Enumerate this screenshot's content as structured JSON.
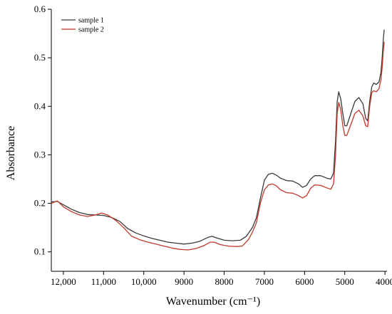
{
  "chart_data": {
    "type": "line",
    "title": "",
    "xlabel": "Wavenumber (cm⁻¹)",
    "ylabel": "Absorbance",
    "xlim": [
      12300,
      3950
    ],
    "ylim": [
      0.06,
      0.6
    ],
    "x_reversed": true,
    "x_ticks": [
      12000,
      11000,
      10000,
      9000,
      8000,
      7000,
      6000,
      5000,
      4000
    ],
    "x_tick_labels": [
      "12,000",
      "11,000",
      "10,000",
      "9000",
      "8000",
      "7000",
      "6000",
      "5000",
      "4000"
    ],
    "y_ticks": [
      0.1,
      0.2,
      0.3,
      0.4,
      0.5,
      0.6
    ],
    "y_tick_labels": [
      "0.1",
      "0.2",
      "0.3",
      "0.4",
      "0.5",
      "0.6"
    ],
    "grid": false,
    "legend_position": "top-left",
    "series": [
      {
        "name": "sample 1",
        "color": "#3a3a3a",
        "points": [
          [
            12300,
            0.203
          ],
          [
            12150,
            0.204
          ],
          [
            12000,
            0.197
          ],
          [
            11800,
            0.188
          ],
          [
            11600,
            0.181
          ],
          [
            11400,
            0.177
          ],
          [
            11200,
            0.176
          ],
          [
            11000,
            0.175
          ],
          [
            10800,
            0.171
          ],
          [
            10600,
            0.163
          ],
          [
            10400,
            0.148
          ],
          [
            10200,
            0.139
          ],
          [
            10000,
            0.133
          ],
          [
            9800,
            0.128
          ],
          [
            9600,
            0.124
          ],
          [
            9400,
            0.12
          ],
          [
            9200,
            0.118
          ],
          [
            9000,
            0.116
          ],
          [
            8800,
            0.118
          ],
          [
            8600,
            0.122
          ],
          [
            8400,
            0.13
          ],
          [
            8300,
            0.132
          ],
          [
            8200,
            0.129
          ],
          [
            8000,
            0.124
          ],
          [
            7800,
            0.123
          ],
          [
            7600,
            0.124
          ],
          [
            7450,
            0.132
          ],
          [
            7300,
            0.15
          ],
          [
            7200,
            0.17
          ],
          [
            7100,
            0.21
          ],
          [
            7000,
            0.248
          ],
          [
            6900,
            0.26
          ],
          [
            6800,
            0.262
          ],
          [
            6700,
            0.258
          ],
          [
            6600,
            0.252
          ],
          [
            6450,
            0.247
          ],
          [
            6300,
            0.246
          ],
          [
            6150,
            0.24
          ],
          [
            6050,
            0.233
          ],
          [
            5950,
            0.237
          ],
          [
            5850,
            0.25
          ],
          [
            5750,
            0.257
          ],
          [
            5600,
            0.257
          ],
          [
            5450,
            0.252
          ],
          [
            5350,
            0.25
          ],
          [
            5280,
            0.262
          ],
          [
            5230,
            0.33
          ],
          [
            5190,
            0.41
          ],
          [
            5150,
            0.43
          ],
          [
            5100,
            0.415
          ],
          [
            5050,
            0.385
          ],
          [
            5000,
            0.36
          ],
          [
            4950,
            0.36
          ],
          [
            4850,
            0.385
          ],
          [
            4750,
            0.41
          ],
          [
            4650,
            0.418
          ],
          [
            4550,
            0.405
          ],
          [
            4480,
            0.375
          ],
          [
            4430,
            0.37
          ],
          [
            4380,
            0.41
          ],
          [
            4330,
            0.44
          ],
          [
            4280,
            0.448
          ],
          [
            4220,
            0.445
          ],
          [
            4150,
            0.45
          ],
          [
            4100,
            0.47
          ],
          [
            4070,
            0.5
          ],
          [
            4040,
            0.54
          ],
          [
            4020,
            0.558
          ]
        ]
      },
      {
        "name": "sample 2",
        "color": "#c0392b",
        "points": [
          [
            12300,
            0.2
          ],
          [
            12150,
            0.205
          ],
          [
            12000,
            0.193
          ],
          [
            11800,
            0.183
          ],
          [
            11600,
            0.176
          ],
          [
            11400,
            0.173
          ],
          [
            11200,
            0.176
          ],
          [
            11050,
            0.18
          ],
          [
            10900,
            0.176
          ],
          [
            10700,
            0.165
          ],
          [
            10500,
            0.15
          ],
          [
            10300,
            0.132
          ],
          [
            10100,
            0.125
          ],
          [
            9900,
            0.12
          ],
          [
            9700,
            0.116
          ],
          [
            9500,
            0.112
          ],
          [
            9300,
            0.108
          ],
          [
            9100,
            0.105
          ],
          [
            8900,
            0.104
          ],
          [
            8700,
            0.107
          ],
          [
            8500,
            0.113
          ],
          [
            8350,
            0.12
          ],
          [
            8250,
            0.12
          ],
          [
            8100,
            0.115
          ],
          [
            7900,
            0.112
          ],
          [
            7700,
            0.111
          ],
          [
            7550,
            0.112
          ],
          [
            7400,
            0.125
          ],
          [
            7300,
            0.14
          ],
          [
            7200,
            0.16
          ],
          [
            7100,
            0.2
          ],
          [
            7000,
            0.228
          ],
          [
            6900,
            0.238
          ],
          [
            6800,
            0.24
          ],
          [
            6700,
            0.236
          ],
          [
            6600,
            0.228
          ],
          [
            6450,
            0.222
          ],
          [
            6300,
            0.221
          ],
          [
            6150,
            0.216
          ],
          [
            6050,
            0.211
          ],
          [
            5950,
            0.216
          ],
          [
            5850,
            0.231
          ],
          [
            5750,
            0.238
          ],
          [
            5600,
            0.237
          ],
          [
            5450,
            0.232
          ],
          [
            5350,
            0.229
          ],
          [
            5280,
            0.24
          ],
          [
            5230,
            0.3
          ],
          [
            5190,
            0.385
          ],
          [
            5150,
            0.408
          ],
          [
            5100,
            0.393
          ],
          [
            5050,
            0.36
          ],
          [
            5000,
            0.34
          ],
          [
            4950,
            0.34
          ],
          [
            4850,
            0.362
          ],
          [
            4750,
            0.385
          ],
          [
            4650,
            0.392
          ],
          [
            4550,
            0.38
          ],
          [
            4480,
            0.36
          ],
          [
            4430,
            0.358
          ],
          [
            4380,
            0.4
          ],
          [
            4330,
            0.428
          ],
          [
            4280,
            0.432
          ],
          [
            4220,
            0.43
          ],
          [
            4150,
            0.436
          ],
          [
            4100,
            0.455
          ],
          [
            4070,
            0.48
          ],
          [
            4040,
            0.515
          ],
          [
            4020,
            0.533
          ]
        ]
      }
    ]
  }
}
